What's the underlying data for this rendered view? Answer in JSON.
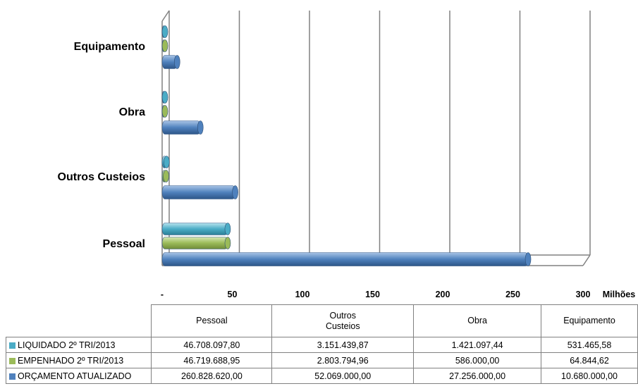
{
  "chart_data": {
    "type": "bar",
    "orientation": "horizontal",
    "categories": [
      "Pessoal",
      "Outros Custeios",
      "Obra",
      "Equipamento"
    ],
    "table_headers": [
      [
        "Pessoal"
      ],
      [
        "Outros",
        "Custeios"
      ],
      [
        "Obra"
      ],
      [
        "Equipamento"
      ]
    ],
    "unit_label": "Milhões",
    "x_ticks": [
      "-",
      "50",
      "100",
      "150",
      "200",
      "250",
      "300"
    ],
    "xlim": [
      0,
      300
    ],
    "scale": 1000000,
    "grid": true,
    "legend": "table-left",
    "series": [
      {
        "name": "LIQUIDADO 2º TRI/2013",
        "color": "#4bacc6",
        "values": [
          46708097.8,
          3151439.87,
          1421097.44,
          531465.58
        ],
        "labels": [
          "46.708.097,80",
          "3.151.439,87",
          "1.421.097,44",
          "531.465,58"
        ]
      },
      {
        "name": "EMPENHADO 2º TRI/2013",
        "color": "#9bbb59",
        "values": [
          46719688.95,
          2803794.96,
          586000.0,
          64844.62
        ],
        "labels": [
          "46.719.688,95",
          "2.803.794,96",
          "586.000,00",
          "64.844,62"
        ]
      },
      {
        "name": "ORÇAMENTO ATUALIZADO",
        "color": "#4f81bd",
        "values": [
          260828620.0,
          52069000.0,
          27256000.0,
          10680000.0
        ],
        "labels": [
          "260.828.620,00",
          "52.069.000,00",
          "27.256.000,00",
          "10.680.000,00"
        ]
      }
    ]
  }
}
